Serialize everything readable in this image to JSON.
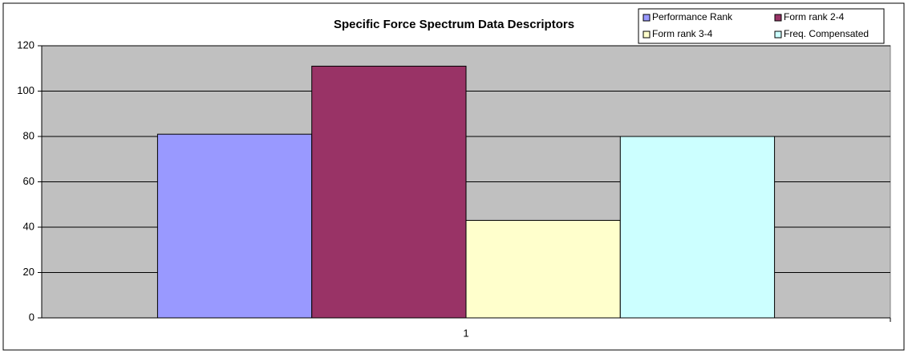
{
  "chart_data": {
    "type": "bar",
    "title": "Specific Force Spectrum Data Descriptors",
    "categories": [
      "1"
    ],
    "series": [
      {
        "name": "Performance Rank",
        "color": "#9999ff",
        "values": [
          81
        ]
      },
      {
        "name": "Form rank 2-4",
        "color": "#993366",
        "values": [
          111
        ]
      },
      {
        "name": "Form rank 3-4",
        "color": "#ffffcc",
        "values": [
          43
        ]
      },
      {
        "name": "Freq. Compensated",
        "color": "#ccffff",
        "values": [
          80
        ]
      }
    ],
    "ylim": [
      0,
      120
    ],
    "yticks": [
      0,
      20,
      40,
      60,
      80,
      100,
      120
    ],
    "grid": true,
    "legend": "top-right"
  }
}
